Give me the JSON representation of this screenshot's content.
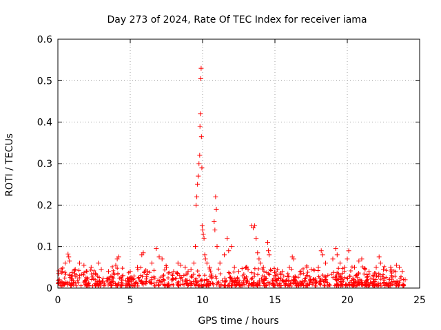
{
  "chart_data": {
    "type": "scatter",
    "title": "Day 273 of 2024, Rate Of TEC Index for receiver iama",
    "xlabel": "GPS time / hours",
    "ylabel": "ROTI / TECUs",
    "xlim": [
      0,
      25
    ],
    "ylim": [
      0,
      0.6
    ],
    "xticks": [
      0,
      5,
      10,
      15,
      20,
      25
    ],
    "yticks": [
      0,
      0.1,
      0.2,
      0.3,
      0.4,
      0.5,
      0.6
    ],
    "grid": true,
    "marker": "plus",
    "color": "#ff0000",
    "points": [
      [
        0.05,
        0.035
      ],
      [
        0.1,
        0.02
      ],
      [
        0.3,
        0.04
      ],
      [
        0.5,
        0.06
      ],
      [
        0.7,
        0.082
      ],
      [
        0.75,
        0.075
      ],
      [
        0.8,
        0.065
      ],
      [
        1.0,
        0.03
      ],
      [
        1.2,
        0.045
      ],
      [
        1.5,
        0.06
      ],
      [
        1.8,
        0.055
      ],
      [
        2.0,
        0.04
      ],
      [
        2.3,
        0.05
      ],
      [
        2.6,
        0.035
      ],
      [
        2.8,
        0.06
      ],
      [
        3.0,
        0.045
      ],
      [
        3.5,
        0.04
      ],
      [
        4.0,
        0.055
      ],
      [
        4.1,
        0.07
      ],
      [
        4.2,
        0.075
      ],
      [
        4.5,
        0.03
      ],
      [
        5.0,
        0.04
      ],
      [
        5.5,
        0.05
      ],
      [
        5.8,
        0.08
      ],
      [
        5.9,
        0.085
      ],
      [
        6.2,
        0.04
      ],
      [
        6.5,
        0.06
      ],
      [
        6.8,
        0.095
      ],
      [
        7.0,
        0.075
      ],
      [
        7.2,
        0.07
      ],
      [
        7.5,
        0.05
      ],
      [
        8.0,
        0.04
      ],
      [
        8.3,
        0.06
      ],
      [
        8.5,
        0.055
      ],
      [
        8.8,
        0.05
      ],
      [
        9.0,
        0.04
      ],
      [
        9.2,
        0.045
      ],
      [
        9.4,
        0.06
      ],
      [
        9.5,
        0.1
      ],
      [
        9.55,
        0.2
      ],
      [
        9.6,
        0.22
      ],
      [
        9.65,
        0.25
      ],
      [
        9.7,
        0.27
      ],
      [
        9.75,
        0.3
      ],
      [
        9.8,
        0.32
      ],
      [
        9.82,
        0.39
      ],
      [
        9.85,
        0.42
      ],
      [
        9.87,
        0.505
      ],
      [
        9.9,
        0.53
      ],
      [
        9.92,
        0.365
      ],
      [
        9.95,
        0.29
      ],
      [
        9.97,
        0.15
      ],
      [
        10.0,
        0.14
      ],
      [
        10.05,
        0.13
      ],
      [
        10.1,
        0.12
      ],
      [
        10.15,
        0.08
      ],
      [
        10.2,
        0.07
      ],
      [
        10.3,
        0.06
      ],
      [
        10.5,
        0.05
      ],
      [
        10.8,
        0.16
      ],
      [
        10.85,
        0.14
      ],
      [
        10.9,
        0.22
      ],
      [
        10.95,
        0.19
      ],
      [
        11.0,
        0.1
      ],
      [
        11.2,
        0.06
      ],
      [
        11.5,
        0.08
      ],
      [
        11.7,
        0.12
      ],
      [
        11.8,
        0.09
      ],
      [
        12.0,
        0.1
      ],
      [
        12.2,
        0.05
      ],
      [
        12.5,
        0.04
      ],
      [
        13.0,
        0.05
      ],
      [
        13.4,
        0.15
      ],
      [
        13.5,
        0.145
      ],
      [
        13.6,
        0.15
      ],
      [
        13.7,
        0.12
      ],
      [
        13.8,
        0.085
      ],
      [
        13.9,
        0.07
      ],
      [
        14.0,
        0.06
      ],
      [
        14.2,
        0.05
      ],
      [
        14.5,
        0.11
      ],
      [
        14.55,
        0.09
      ],
      [
        14.6,
        0.08
      ],
      [
        15.0,
        0.03
      ],
      [
        15.5,
        0.04
      ],
      [
        16.0,
        0.05
      ],
      [
        16.2,
        0.075
      ],
      [
        16.3,
        0.07
      ],
      [
        16.8,
        0.04
      ],
      [
        17.2,
        0.05
      ],
      [
        17.5,
        0.045
      ],
      [
        18.0,
        0.05
      ],
      [
        18.2,
        0.09
      ],
      [
        18.3,
        0.08
      ],
      [
        18.5,
        0.06
      ],
      [
        19.0,
        0.07
      ],
      [
        19.2,
        0.095
      ],
      [
        19.3,
        0.08
      ],
      [
        19.5,
        0.06
      ],
      [
        19.8,
        0.05
      ],
      [
        20.0,
        0.07
      ],
      [
        20.1,
        0.09
      ],
      [
        20.5,
        0.05
      ],
      [
        20.8,
        0.065
      ],
      [
        21.0,
        0.07
      ],
      [
        21.5,
        0.04
      ],
      [
        22.0,
        0.05
      ],
      [
        22.2,
        0.075
      ],
      [
        22.3,
        0.06
      ],
      [
        22.5,
        0.045
      ],
      [
        23.0,
        0.05
      ],
      [
        23.4,
        0.055
      ],
      [
        23.6,
        0.05
      ],
      [
        23.8,
        0.04
      ],
      [
        24.0,
        0.02
      ]
    ]
  }
}
